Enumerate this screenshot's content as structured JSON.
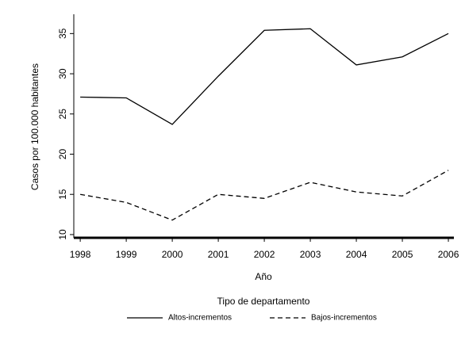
{
  "chart_data": {
    "type": "line",
    "x": [
      1998,
      1999,
      2000,
      2001,
      2002,
      2003,
      2004,
      2005,
      2006
    ],
    "series": [
      {
        "name": "Altos-incrementos",
        "color": "#000000",
        "dash": false,
        "values": [
          27.1,
          27.0,
          23.7,
          29.7,
          35.4,
          35.6,
          31.1,
          32.1,
          35.0
        ]
      },
      {
        "name": "Bajos-incrementos",
        "color": "#000000",
        "dash": true,
        "values": [
          15.0,
          14.0,
          11.8,
          15.0,
          14.5,
          16.5,
          15.3,
          14.8,
          18.0
        ]
      }
    ],
    "xlabel": "Año",
    "ylabel": "Casos por 100.000 habitantes",
    "legend_title": "Tipo de departamento",
    "xlim": [
      1997.86,
      2006.12
    ],
    "xticks": [
      1998,
      1999,
      2000,
      2001,
      2002,
      2003,
      2004,
      2005,
      2006
    ],
    "ylim": [
      9.6,
      37.4
    ],
    "yticks": [
      10,
      15,
      20,
      25,
      30,
      35
    ],
    "grid": false
  }
}
